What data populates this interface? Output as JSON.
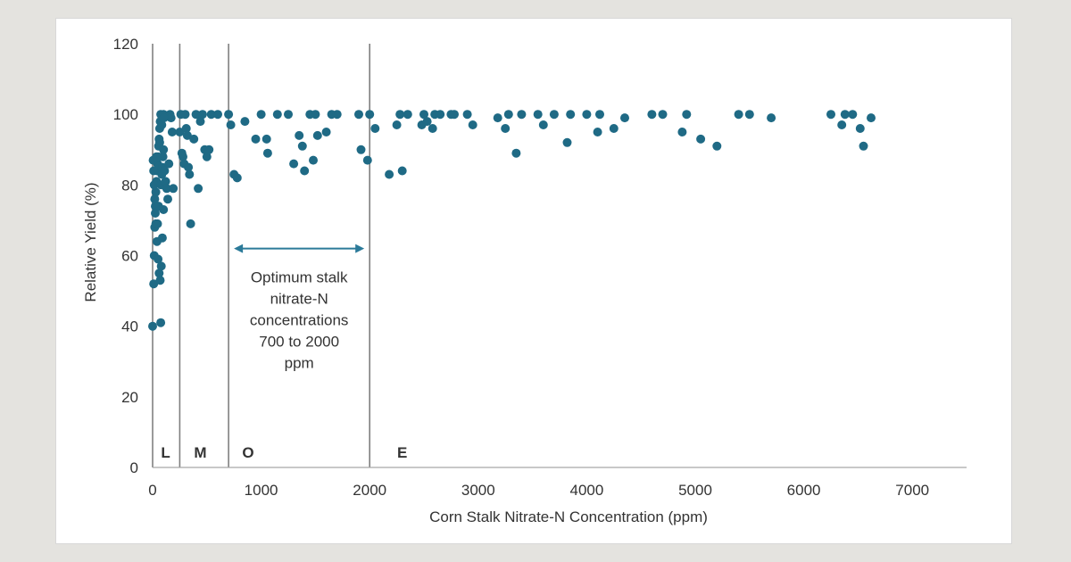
{
  "colors": {
    "page_background": "#e4e3df",
    "card_background": "#ffffff",
    "points": "#1f6a85",
    "arrow": "#2b7a99",
    "zone_lines": "#808080",
    "axis": "#a6a6a6"
  },
  "chart_data": {
    "type": "scatter",
    "xlabel": "Corn Stalk Nitrate-N Concentration (ppm)",
    "ylabel": "Relative Yield (%)",
    "xlim": [
      0,
      7500
    ],
    "ylim": [
      0,
      120
    ],
    "x_ticks": [
      0,
      1000,
      2000,
      3000,
      4000,
      5000,
      6000,
      7000
    ],
    "y_ticks": [
      0,
      20,
      40,
      60,
      80,
      100,
      120
    ],
    "grid": false,
    "legend": "none",
    "zone_boundaries": [
      0,
      250,
      700,
      2000
    ],
    "zones": [
      {
        "label": "L",
        "x": 120
      },
      {
        "label": "M",
        "x": 440
      },
      {
        "label": "O",
        "x": 880
      },
      {
        "label": "E",
        "x": 2300
      }
    ],
    "annotation": {
      "lines": [
        "Optimum stalk",
        "nitrate-N",
        "concentrations",
        "700 to 2000",
        "ppm"
      ],
      "arrow_from": 700,
      "arrow_to": 2000,
      "arrow_y": 62
    },
    "points": [
      [
        0,
        40
      ],
      [
        10,
        52
      ],
      [
        15,
        60
      ],
      [
        20,
        68
      ],
      [
        25,
        74
      ],
      [
        30,
        78
      ],
      [
        35,
        81
      ],
      [
        40,
        84
      ],
      [
        45,
        86
      ],
      [
        50,
        88
      ],
      [
        55,
        91
      ],
      [
        60,
        93
      ],
      [
        65,
        96
      ],
      [
        70,
        98
      ],
      [
        75,
        100
      ],
      [
        5,
        87
      ],
      [
        10,
        84
      ],
      [
        15,
        80
      ],
      [
        20,
        76
      ],
      [
        25,
        72
      ],
      [
        30,
        69
      ],
      [
        40,
        64
      ],
      [
        50,
        59
      ],
      [
        60,
        55
      ],
      [
        70,
        53
      ],
      [
        75,
        41
      ],
      [
        80,
        80
      ],
      [
        85,
        83
      ],
      [
        90,
        85
      ],
      [
        95,
        88
      ],
      [
        100,
        90
      ],
      [
        110,
        84
      ],
      [
        120,
        81
      ],
      [
        130,
        79
      ],
      [
        140,
        76
      ],
      [
        150,
        86
      ],
      [
        160,
        100
      ],
      [
        170,
        99
      ],
      [
        180,
        95
      ],
      [
        190,
        79
      ],
      [
        100,
        100
      ],
      [
        100,
        73
      ],
      [
        90,
        65
      ],
      [
        80,
        57
      ],
      [
        55,
        74
      ],
      [
        45,
        69
      ],
      [
        35,
        88
      ],
      [
        65,
        92
      ],
      [
        85,
        97
      ],
      [
        105,
        99
      ],
      [
        250,
        95
      ],
      [
        260,
        100
      ],
      [
        270,
        89
      ],
      [
        280,
        88
      ],
      [
        290,
        86
      ],
      [
        300,
        100
      ],
      [
        310,
        96
      ],
      [
        320,
        94
      ],
      [
        330,
        85
      ],
      [
        340,
        83
      ],
      [
        350,
        69
      ],
      [
        380,
        93
      ],
      [
        400,
        100
      ],
      [
        420,
        79
      ],
      [
        440,
        98
      ],
      [
        460,
        100
      ],
      [
        480,
        90
      ],
      [
        500,
        88
      ],
      [
        520,
        90
      ],
      [
        540,
        100
      ],
      [
        600,
        100
      ],
      [
        700,
        100
      ],
      [
        720,
        97
      ],
      [
        750,
        83
      ],
      [
        780,
        82
      ],
      [
        850,
        98
      ],
      [
        950,
        93
      ],
      [
        1000,
        100
      ],
      [
        1050,
        93
      ],
      [
        1060,
        89
      ],
      [
        1150,
        100
      ],
      [
        1250,
        100
      ],
      [
        1300,
        86
      ],
      [
        1350,
        94
      ],
      [
        1380,
        91
      ],
      [
        1400,
        84
      ],
      [
        1450,
        100
      ],
      [
        1480,
        87
      ],
      [
        1500,
        100
      ],
      [
        1520,
        94
      ],
      [
        1600,
        95
      ],
      [
        1650,
        100
      ],
      [
        1700,
        100
      ],
      [
        1900,
        100
      ],
      [
        1920,
        90
      ],
      [
        1980,
        87
      ],
      [
        2000,
        100
      ],
      [
        2050,
        96
      ],
      [
        2180,
        83
      ],
      [
        2250,
        97
      ],
      [
        2280,
        100
      ],
      [
        2300,
        84
      ],
      [
        2350,
        100
      ],
      [
        2480,
        97
      ],
      [
        2500,
        100
      ],
      [
        2530,
        98
      ],
      [
        2580,
        96
      ],
      [
        2600,
        100
      ],
      [
        2650,
        100
      ],
      [
        2750,
        100
      ],
      [
        2780,
        100
      ],
      [
        2900,
        100
      ],
      [
        2950,
        97
      ],
      [
        3180,
        99
      ],
      [
        3250,
        96
      ],
      [
        3280,
        100
      ],
      [
        3350,
        89
      ],
      [
        3400,
        100
      ],
      [
        3550,
        100
      ],
      [
        3600,
        97
      ],
      [
        3700,
        100
      ],
      [
        3820,
        92
      ],
      [
        3850,
        100
      ],
      [
        4000,
        100
      ],
      [
        4100,
        95
      ],
      [
        4120,
        100
      ],
      [
        4250,
        96
      ],
      [
        4350,
        99
      ],
      [
        4600,
        100
      ],
      [
        4700,
        100
      ],
      [
        4880,
        95
      ],
      [
        4920,
        100
      ],
      [
        5050,
        93
      ],
      [
        5200,
        91
      ],
      [
        5400,
        100
      ],
      [
        5500,
        100
      ],
      [
        5700,
        99
      ],
      [
        6250,
        100
      ],
      [
        6350,
        97
      ],
      [
        6380,
        100
      ],
      [
        6450,
        100
      ],
      [
        6520,
        96
      ],
      [
        6550,
        91
      ],
      [
        6620,
        99
      ]
    ]
  }
}
